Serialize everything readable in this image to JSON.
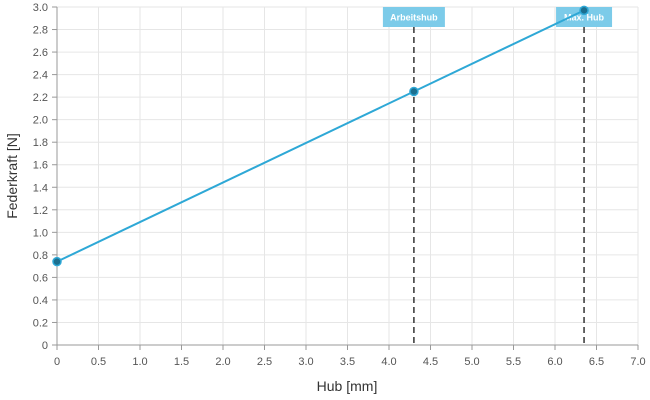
{
  "chart_data": {
    "type": "line",
    "xlabel": "Hub [mm]",
    "ylabel": "Federkraft [N]",
    "xlim": [
      0,
      7.0
    ],
    "ylim": [
      0,
      3.0
    ],
    "x_ticks": [
      "0",
      "0.5",
      "1.0",
      "1.5",
      "2.0",
      "2.5",
      "3.0",
      "3.5",
      "4.0",
      "4.5",
      "5.0",
      "5.5",
      "6.0",
      "6.5",
      "7.0"
    ],
    "y_ticks": [
      "0",
      "0.2",
      "0.4",
      "0.6",
      "0.8",
      "1.0",
      "1.2",
      "1.4",
      "1.6",
      "1.8",
      "2.0",
      "2.2",
      "2.4",
      "2.6",
      "2.8",
      "3.0"
    ],
    "grid": true,
    "series": [
      {
        "color": "#2ea8d6",
        "points": [
          {
            "x": 0,
            "y": 0.74
          },
          {
            "x": 4.3,
            "y": 2.25
          },
          {
            "x": 6.35,
            "y": 2.97
          }
        ]
      }
    ],
    "markers": [
      {
        "label": "Arbeitshub",
        "x": 4.3
      },
      {
        "label": "Max. Hub",
        "x": 6.35
      }
    ]
  },
  "colors": {
    "line": "#2ea8d6",
    "point": "#1c6f8f",
    "grid": "#e6e6e6",
    "axis": "#999999",
    "marker_line": "#333333",
    "marker_label_bg": "#7ccbe9"
  }
}
